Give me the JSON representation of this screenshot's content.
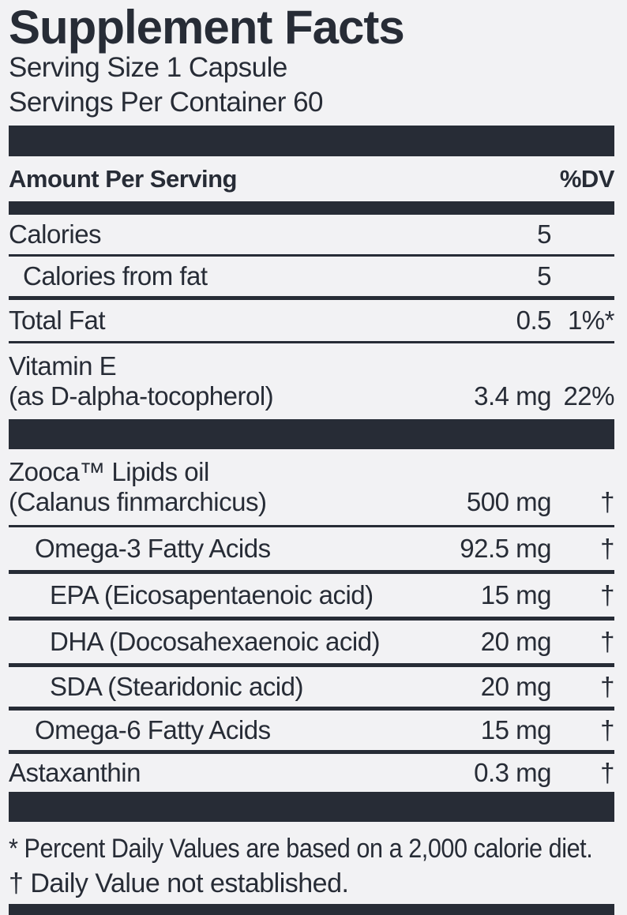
{
  "title": "Supplement Facts",
  "serving_info": {
    "serving_size": "Serving Size 1 Capsule",
    "servings_per_container": "Servings Per Container 60"
  },
  "table": {
    "header": {
      "amount_label": "Amount Per Serving",
      "dv_label": "%DV"
    },
    "rows": [
      {
        "name": "Calories",
        "amount": "5",
        "dv": ""
      },
      {
        "name": "Calories from fat",
        "amount": "5",
        "dv": ""
      },
      {
        "name": "Total Fat",
        "amount": "0.5",
        "dv": "1%*"
      },
      {
        "name": "Vitamin E",
        "sub": "(as D-alpha-tocopherol)",
        "amount": "3.4 mg",
        "dv": "22%"
      },
      {
        "name": "Zooca™ Lipids oil",
        "sub": "(Calanus finmarchicus)",
        "amount": "500 mg",
        "dv": "†"
      },
      {
        "name": "Omega-3 Fatty Acids",
        "amount": "92.5 mg",
        "dv": "†"
      },
      {
        "name": "EPA (Eicosapentaenoic acid)",
        "amount": "15 mg",
        "dv": "†"
      },
      {
        "name": "DHA (Docosahexaenoic acid)",
        "amount": "20 mg",
        "dv": "†"
      },
      {
        "name": "SDA (Stearidonic acid)",
        "amount": "20 mg",
        "dv": "†"
      },
      {
        "name": "Omega-6 Fatty Acids",
        "amount": "15 mg",
        "dv": "†"
      },
      {
        "name": "Astaxanthin",
        "amount": "0.3 mg",
        "dv": "†"
      }
    ]
  },
  "footnotes": {
    "percent_dv": "* Percent Daily Values are based on a 2,000 calorie diet.",
    "dagger": "† Daily Value not established."
  },
  "colors": {
    "ink": "#272c36",
    "background": "#f2f2f4"
  }
}
